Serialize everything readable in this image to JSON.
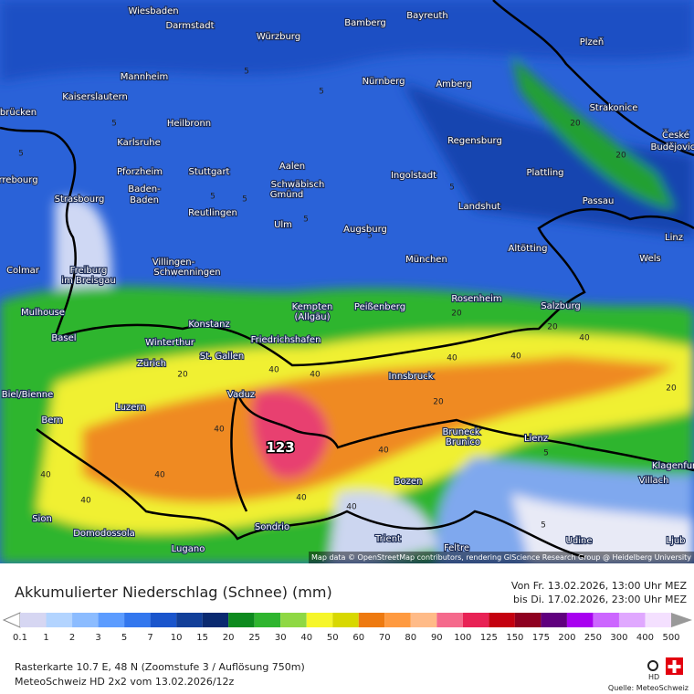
{
  "map": {
    "cities": [
      "Wiesbaden",
      "Darmstadt",
      "Würzburg",
      "Bamberg",
      "Bayreuth",
      "Plzeň",
      "Mannheim",
      "Kaiserslautern",
      "Nürnberg",
      "Amberg",
      "Strakonice",
      "Heilbronn",
      "Karlsruhe",
      "Regensburg",
      "České",
      "Budějovice",
      "Pforzheim",
      "Stuttgart",
      "Aalen",
      "Schwäbisch",
      "Gmünd",
      "Ingolstadt",
      "Plattling",
      "Strasbourg",
      "Baden-",
      "Baden",
      "Passau",
      "Reutlingen",
      "Landshut",
      "Ulm",
      "Augsburg",
      "Linz",
      "Altötting",
      "Colmar",
      "Freiburg",
      "im Breisgau",
      "Villingen-",
      "Schwenningen",
      "München",
      "Wels",
      "Kempten",
      "(Allgäu)",
      "Peißenberg",
      "Rosenheim",
      "Salzburg",
      "Mulhouse",
      "Konstanz",
      "Basel",
      "Winterthur",
      "Friedrichshafen",
      "St. Gallen",
      "Zürich",
      "Innsbruck",
      "Biel/Bienne",
      "Vaduz",
      "Luzern",
      "Bern",
      "Bruneck",
      "Brunico",
      "Lienz",
      "Klagenfurt",
      "Villach",
      "Bozen",
      "Sion",
      "Sondrio",
      "Domodossola",
      "Trient",
      "Udine",
      "Lugano",
      "Feltre",
      "Ljub",
      "brücken",
      "rrebourg"
    ],
    "contour_labels": [
      "5",
      "5",
      "5",
      "5",
      "5",
      "5",
      "5",
      "5",
      "5",
      "20",
      "20",
      "20",
      "20",
      "20",
      "40",
      "40",
      "40",
      "40",
      "40",
      "40",
      "40",
      "40",
      "40",
      "40",
      "20",
      "20",
      "40",
      "40",
      "5",
      "5"
    ],
    "max_label": "123",
    "attribution": "Map data © OpenStreetMap contributors, rendering GIScience Research Group @ Heidelberg University"
  },
  "legend": {
    "title": "Akkumulierter Niederschlag (Schnee) (mm)",
    "period_from": "Von Fr. 13.02.2026, 13:00 Uhr MEZ",
    "period_to": "bis Di. 17.02.2026, 23:00 Uhr MEZ",
    "values": [
      0.1,
      1,
      2,
      3,
      5,
      7,
      10,
      15,
      20,
      25,
      30,
      40,
      50,
      60,
      70,
      80,
      90,
      100,
      125,
      150,
      175,
      200,
      250,
      300,
      400,
      500
    ],
    "colors": [
      "#ffffff",
      "#d6d6f2",
      "#b3d4ff",
      "#8cbcff",
      "#5c9cff",
      "#3377ee",
      "#1a55cc",
      "#123f99",
      "#0a2a70",
      "#0d8a1e",
      "#2fb52f",
      "#8fd844",
      "#f6f62a",
      "#d8d800",
      "#ee7a10",
      "#ff9a40",
      "#ffbb88",
      "#f56a8c",
      "#e82255",
      "#c40010",
      "#8e0020",
      "#60007e",
      "#a800f0",
      "#cc66ff",
      "#e0a8ff",
      "#f4e0ff",
      "#d0d0d0",
      "#999999"
    ]
  },
  "footer": {
    "line1": "Rasterkarte 10.7 E, 48 N (Zoomstufe 3 / Auflösung 750m)",
    "line2": "MeteoSchweiz HD 2x2 vom  13.02.2026/12z",
    "source": "Quelle: MeteoSchweiz",
    "logo": "HD"
  }
}
